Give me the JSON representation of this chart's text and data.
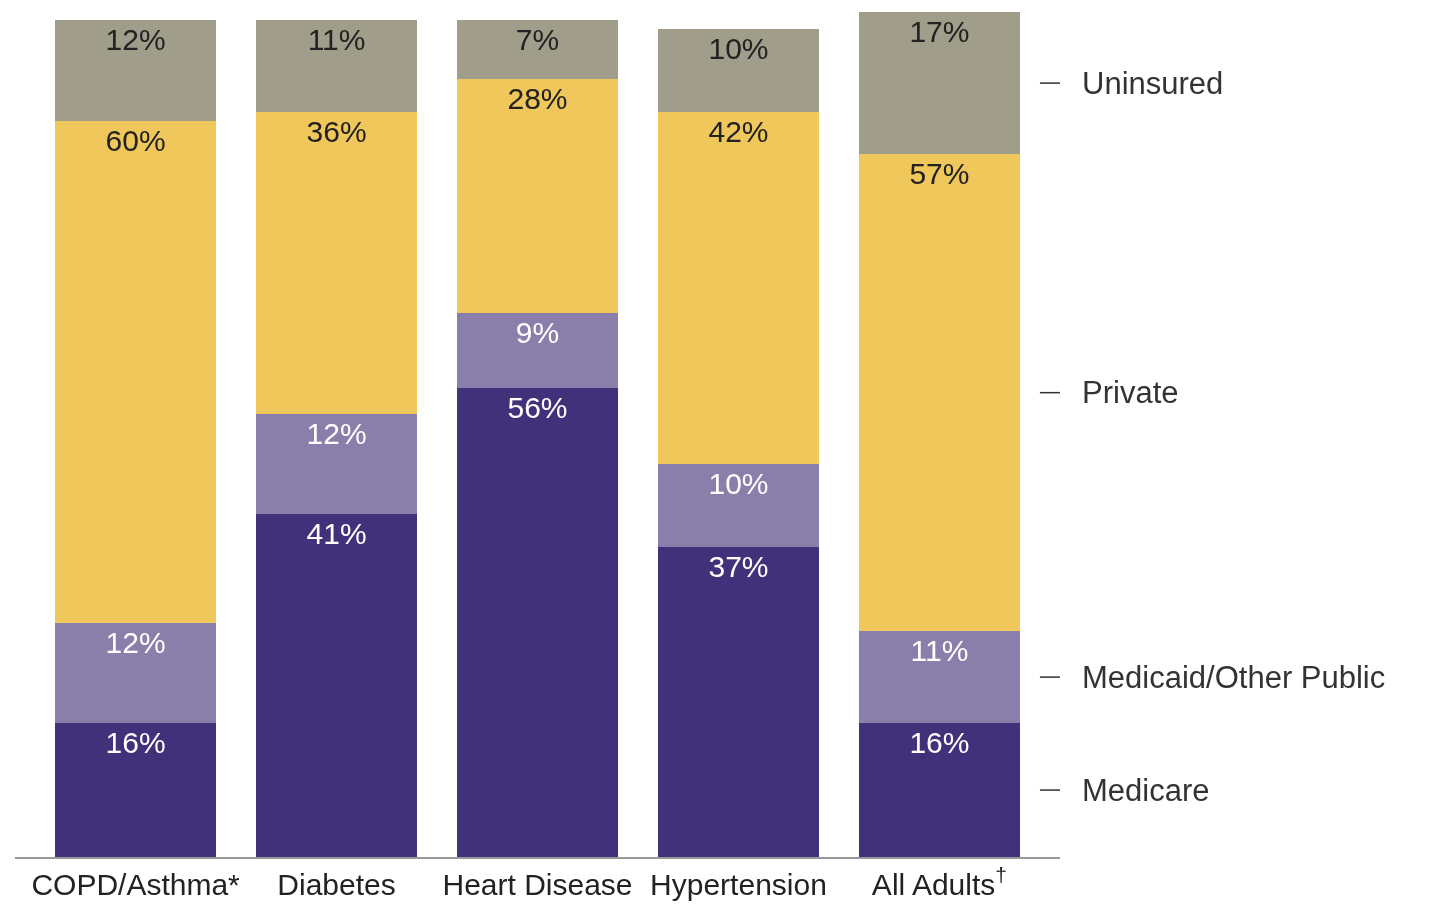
{
  "chart_data": {
    "type": "bar",
    "stacked": true,
    "legend": false,
    "categories": [
      "COPD/Asthma*",
      "Diabetes",
      "Heart Disease",
      "Hypertension",
      "All Adults$^{†}$"
    ],
    "series": [
      {
        "name": "Medicare",
        "color": "#41317a",
        "values": [
          16,
          41,
          56,
          37,
          16
        ],
        "value_labels": [
          "16%",
          "41%",
          "56%",
          "37%",
          "16%"
        ]
      },
      {
        "name": "Medicaid/Other Public",
        "color": "#8a7fab",
        "values": [
          12,
          12,
          9,
          10,
          11
        ],
        "value_labels": [
          "12%",
          "12%",
          "9%",
          "10%",
          "11%"
        ]
      },
      {
        "name": "Private",
        "color": "#efc75a",
        "values": [
          60,
          36,
          28,
          42,
          57
        ],
        "value_labels": [
          "60%",
          "36%",
          "28%",
          "42%",
          "57%"
        ]
      },
      {
        "name": "Uninsured",
        "color": "#a09e8a",
        "values": [
          12,
          11,
          7,
          10,
          17
        ],
        "value_labels": [
          "12%",
          "11%",
          "7%",
          "10%",
          "17%"
        ]
      }
    ]
  }
}
